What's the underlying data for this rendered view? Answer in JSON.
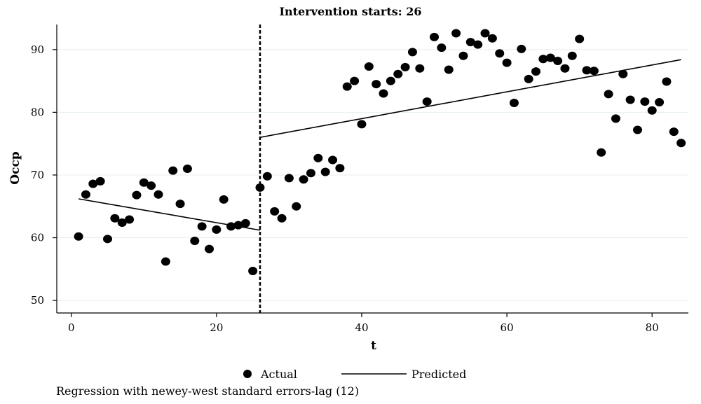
{
  "chart_data": {
    "type": "scatter",
    "title": "Intervention starts: 26",
    "xlabel": "t",
    "ylabel": "Occp",
    "xlim": [
      -2,
      85
    ],
    "ylim": [
      48,
      94
    ],
    "xticks": [
      0,
      20,
      40,
      60,
      80
    ],
    "yticks": [
      50,
      60,
      70,
      80,
      90
    ],
    "grid": "horizontal",
    "intervention_t": 26,
    "series": [
      {
        "name": "Actual",
        "marker": "dot",
        "x": [
          1,
          2,
          3,
          4,
          5,
          6,
          7,
          8,
          9,
          10,
          11,
          12,
          13,
          14,
          15,
          16,
          17,
          18,
          19,
          20,
          21,
          22,
          23,
          24,
          25,
          26,
          27,
          28,
          29,
          30,
          31,
          32,
          33,
          34,
          35,
          36,
          37,
          38,
          39,
          40,
          41,
          42,
          43,
          44,
          45,
          46,
          47,
          48,
          49,
          50,
          51,
          52,
          53,
          54,
          55,
          56,
          57,
          58,
          59,
          60,
          61,
          62,
          63,
          64,
          65,
          66,
          67,
          68,
          69,
          70,
          71,
          72,
          73,
          74,
          75,
          76,
          77,
          78,
          79,
          80,
          81,
          82,
          83,
          84
        ],
        "y": [
          60.2,
          66.9,
          68.6,
          69.0,
          59.8,
          63.1,
          62.4,
          62.9,
          66.8,
          68.8,
          68.3,
          66.9,
          56.2,
          70.7,
          65.4,
          71.0,
          59.5,
          61.8,
          58.2,
          61.3,
          66.1,
          61.8,
          62.0,
          62.3,
          54.7,
          68.0,
          69.8,
          64.2,
          63.1,
          69.5,
          65.0,
          69.3,
          70.3,
          72.7,
          70.5,
          72.4,
          71.1,
          84.1,
          85.0,
          78.1,
          87.3,
          84.5,
          83.0,
          85.0,
          86.1,
          87.2,
          89.6,
          87.0,
          81.7,
          92.0,
          90.3,
          86.8,
          92.6,
          89.0,
          91.2,
          90.8,
          92.6,
          91.8,
          89.4,
          87.9,
          81.5,
          90.1,
          85.3,
          86.5,
          88.5,
          88.7,
          88.2,
          87.0,
          89.0,
          91.7,
          86.7,
          86.6,
          73.6,
          82.9,
          79.0,
          86.1,
          82.0,
          77.2,
          81.7,
          80.3,
          81.6,
          84.9,
          76.9,
          75.1
        ]
      },
      {
        "name": "Predicted",
        "marker": "line",
        "segments": [
          {
            "x": [
              1,
              26
            ],
            "y": [
              66.2,
              61.2
            ]
          },
          {
            "x": [
              26,
              84
            ],
            "y": [
              76.0,
              88.4
            ]
          }
        ]
      }
    ],
    "legend_position": "bottom"
  },
  "footnote": "Regression with newey-west standard errors-lag (12)"
}
